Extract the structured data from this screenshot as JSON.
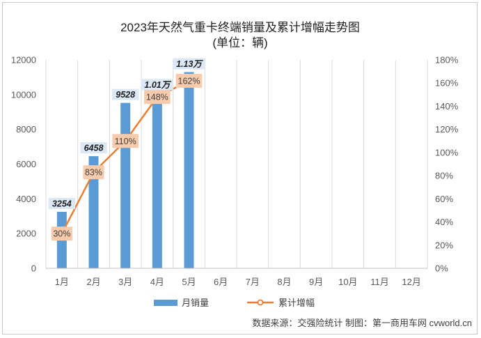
{
  "chart_data": {
    "type": "bar",
    "title": "2023年天然气重卡终端销量及累计增幅走势图",
    "subtitle": "(单位：辆)",
    "categories": [
      "1月",
      "2月",
      "3月",
      "4月",
      "5月",
      "6月",
      "7月",
      "8月",
      "9月",
      "10月",
      "11月",
      "12月"
    ],
    "series": [
      {
        "name": "月销量",
        "type": "bar",
        "axis": "left",
        "color": "#5b9bd5",
        "values": [
          3254,
          6458,
          9528,
          10100,
          11300,
          null,
          null,
          null,
          null,
          null,
          null,
          null
        ],
        "labels": [
          "3254",
          "6458",
          "9528",
          "1.01万",
          "1.13万",
          "",
          "",
          "",
          "",
          "",
          "",
          ""
        ]
      },
      {
        "name": "累计增幅",
        "type": "line",
        "axis": "right",
        "color": "#ed7d31",
        "values": [
          30,
          83,
          110,
          148,
          162,
          null,
          null,
          null,
          null,
          null,
          null,
          null
        ],
        "labels": [
          "30%",
          "83%",
          "110%",
          "148%",
          "162%",
          "",
          "",
          "",
          "",
          "",
          "",
          ""
        ]
      }
    ],
    "ylim_left": [
      0,
      12000
    ],
    "yticks_left": [
      "0",
      "2000",
      "4000",
      "6000",
      "8000",
      "10000",
      "12000"
    ],
    "ylim_right": [
      0,
      180
    ],
    "yticks_right": [
      "0%",
      "20%",
      "40%",
      "60%",
      "80%",
      "100%",
      "120%",
      "140%",
      "160%",
      "180%"
    ],
    "grid": "vertical-category-lines",
    "legend_position": "bottom",
    "source": "数据来源：交强险统计  制图：第一商用车网 cvworld.cn",
    "colors": {
      "bar": "#5b9bd5",
      "line": "#ed7d31",
      "pct_label_bg": "#f8cbad",
      "bar_label_bg": "#dce8f5",
      "grid": "#d9d9d9"
    }
  }
}
